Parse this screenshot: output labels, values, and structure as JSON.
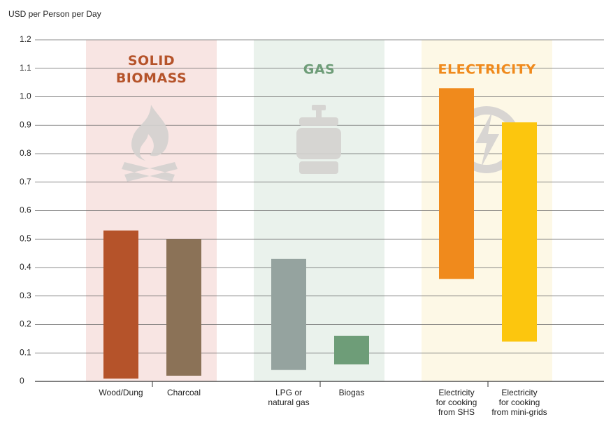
{
  "chart_data": {
    "type": "range_bar",
    "y_label": "USD per Person per Day",
    "ylim": [
      0,
      1.2
    ],
    "yticks": [
      0,
      0.1,
      0.2,
      0.3,
      0.4,
      0.5,
      0.6,
      0.7,
      0.8,
      0.9,
      {
        "value": 1,
        "label": "1.0"
      },
      1.1,
      1.2
    ],
    "grid": true,
    "groups": [
      {
        "label_lines": [
          "SOLID",
          "BIOMASS"
        ],
        "color": "#b5532a",
        "background": "#f8e5e3",
        "categories": [
          {
            "lines": [
              "Wood/Dung"
            ],
            "low": 0.01,
            "high": 0.53,
            "color": "#b5532a"
          },
          {
            "lines": [
              "Charcoal"
            ],
            "low": 0.02,
            "high": 0.5,
            "color": "#8b7257"
          }
        ]
      },
      {
        "label_lines": [
          "GAS"
        ],
        "color": "#6e9d78",
        "background": "#eaf2ec",
        "categories": [
          {
            "lines": [
              "LPG or",
              "natural gas"
            ],
            "low": 0.04,
            "high": 0.43,
            "color": "#95a39f"
          },
          {
            "lines": [
              "Biogas"
            ],
            "low": 0.06,
            "high": 0.16,
            "color": "#6e9d78"
          }
        ]
      },
      {
        "label_lines": [
          "ELECTRICITY"
        ],
        "color": "#f08a1c",
        "background": "#fdf8e6",
        "categories": [
          {
            "lines": [
              "Electricity",
              "for cooking",
              "from SHS"
            ],
            "low": 0.36,
            "high": 1.03,
            "color": "#f08a1c"
          },
          {
            "lines": [
              "Electricity",
              "for cooking",
              "from mini-grids"
            ],
            "low": 0.14,
            "high": 0.91,
            "color": "#fcc60e"
          }
        ]
      }
    ]
  }
}
